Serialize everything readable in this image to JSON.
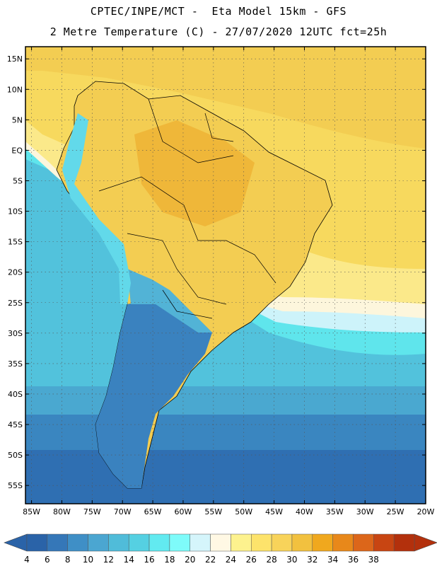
{
  "header": {
    "line1": "CPTEC/INPE/MCT -  Eta Model 15km - GFS",
    "line2": "2 Metre Temperature (C) - 27/07/2020 12UTC fct=25h"
  },
  "map": {
    "lon_range": [
      -86,
      -20
    ],
    "lat_range": [
      -58,
      17
    ],
    "lat_ticks": [
      {
        "value": 15,
        "label": "15N"
      },
      {
        "value": 10,
        "label": "10N"
      },
      {
        "value": 5,
        "label": "5N"
      },
      {
        "value": 0,
        "label": "EQ"
      },
      {
        "value": -5,
        "label": "5S"
      },
      {
        "value": -10,
        "label": "10S"
      },
      {
        "value": -15,
        "label": "15S"
      },
      {
        "value": -20,
        "label": "20S"
      },
      {
        "value": -25,
        "label": "25S"
      },
      {
        "value": -30,
        "label": "30S"
      },
      {
        "value": -35,
        "label": "35S"
      },
      {
        "value": -40,
        "label": "40S"
      },
      {
        "value": -45,
        "label": "45S"
      },
      {
        "value": -50,
        "label": "50S"
      },
      {
        "value": -55,
        "label": "55S"
      }
    ],
    "lon_ticks": [
      {
        "value": -85,
        "label": "85W"
      },
      {
        "value": -80,
        "label": "80W"
      },
      {
        "value": -75,
        "label": "75W"
      },
      {
        "value": -70,
        "label": "70W"
      },
      {
        "value": -65,
        "label": "65W"
      },
      {
        "value": -60,
        "label": "60W"
      },
      {
        "value": -55,
        "label": "55W"
      },
      {
        "value": -50,
        "label": "50W"
      },
      {
        "value": -45,
        "label": "45W"
      },
      {
        "value": -40,
        "label": "40W"
      },
      {
        "value": -35,
        "label": "35W"
      },
      {
        "value": -30,
        "label": "30W"
      },
      {
        "value": -25,
        "label": "25W"
      },
      {
        "value": -20,
        "label": "20W"
      }
    ],
    "grid": true
  },
  "colorbar": {
    "labels": [
      "4",
      "6",
      "8",
      "10",
      "12",
      "14",
      "16",
      "18",
      "20",
      "22",
      "24",
      "26",
      "28",
      "30",
      "32",
      "34",
      "36",
      "38"
    ],
    "colors": [
      "#2a63a8",
      "#3577b8",
      "#3f8fc6",
      "#4ba6d1",
      "#50bcd9",
      "#55d0e2",
      "#62eaf0",
      "#7efbfa",
      "#d5f5fb",
      "#fff8e4",
      "#fdf28e",
      "#fde36b",
      "#f8d35a",
      "#f2c13f",
      "#f0a81e",
      "#e8881a",
      "#dc661a",
      "#c84512",
      "#b3300c"
    ],
    "under_color": "#2a63a8",
    "over_color": "#b3300c"
  },
  "colors": {
    "ocean_cold": "#2f6fb2",
    "ocean_mid": "#4aa8d0",
    "ocean_warm": "#5fe5ec",
    "warm_land": "#f3cd52",
    "hot_land": "#efb739"
  }
}
